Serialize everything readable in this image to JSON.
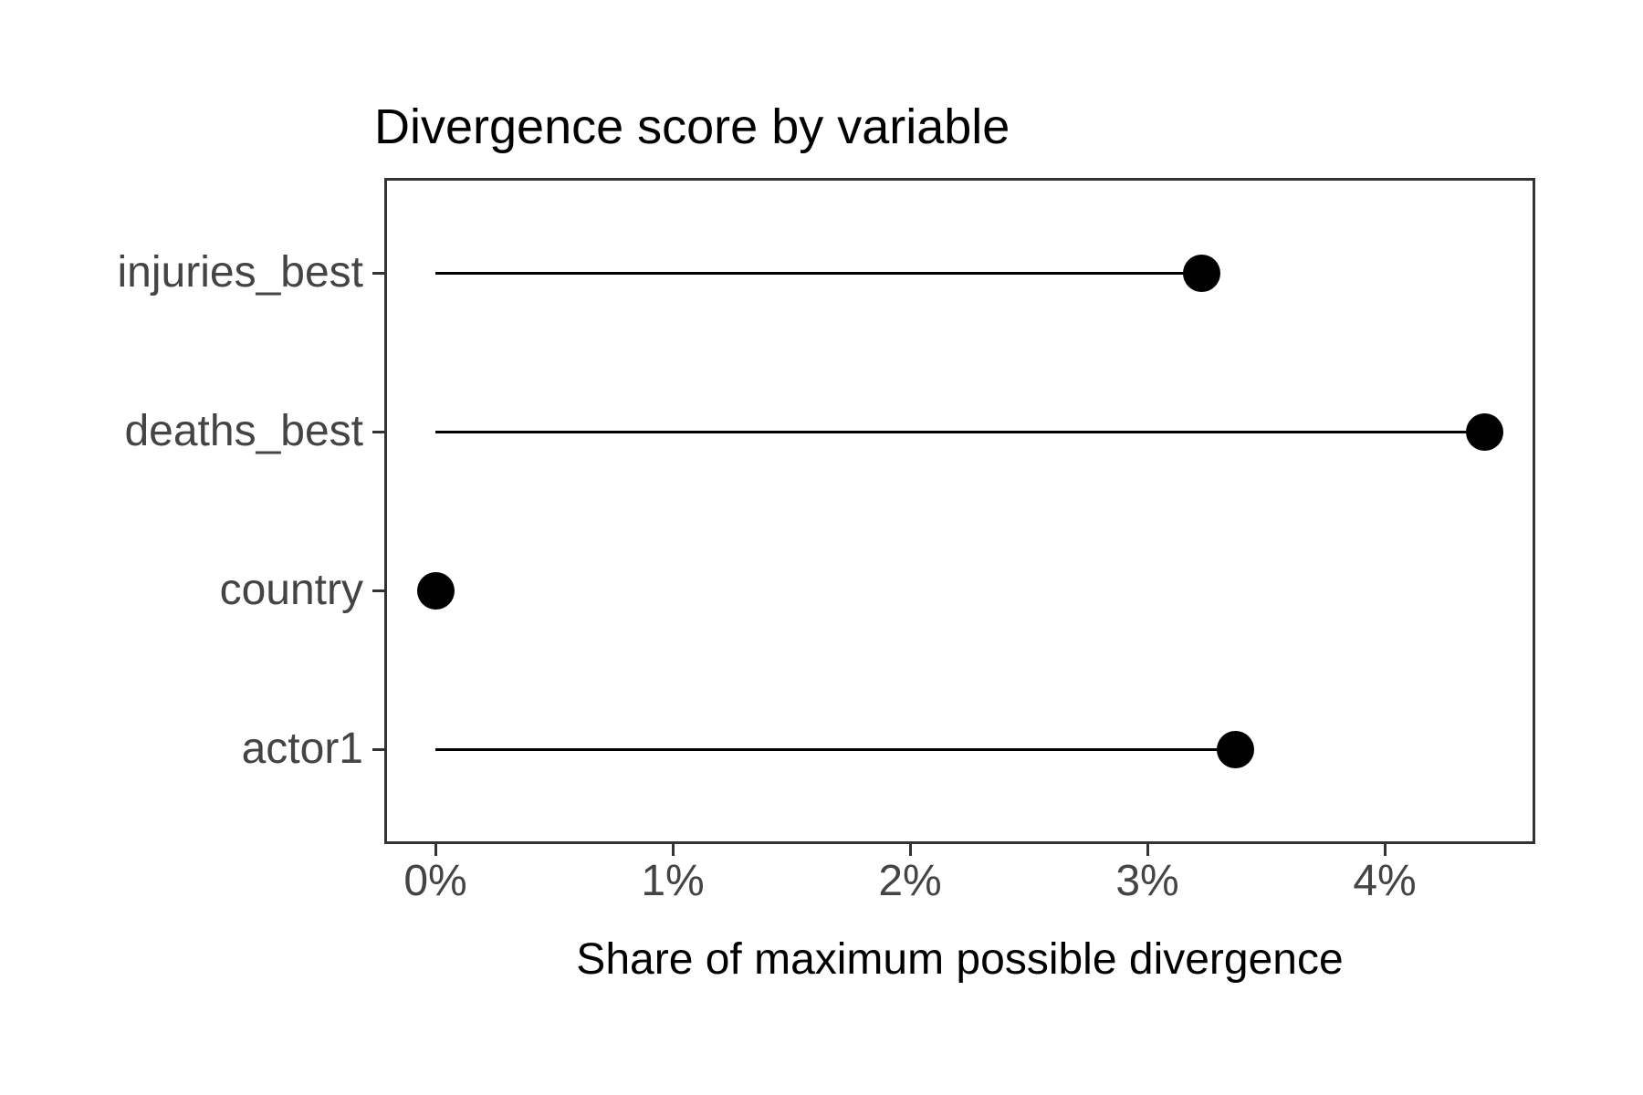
{
  "page": {
    "background_color": "#ffffff"
  },
  "chart_data": {
    "type": "bar",
    "variant": "horizontal-lollipop",
    "title": "Divergence score by variable",
    "xlabel": "Share of maximum possible divergence",
    "ylabel": "",
    "categories": [
      "injuries_best",
      "deaths_best",
      "country",
      "actor1"
    ],
    "values": [
      3.23,
      4.42,
      0.0,
      3.37
    ],
    "value_unit": "percent",
    "xlim": [
      -0.22,
      4.64
    ],
    "x_ticks": [
      "0%",
      "1%",
      "2%",
      "3%",
      "4%"
    ],
    "x_tick_values": [
      0,
      1,
      2,
      3,
      4
    ],
    "grid": false,
    "legend": false,
    "point_color": "#000000",
    "stem_color": "#000000",
    "axis_text_color": "#444444",
    "axis_title_color": "#000000",
    "title_color": "#000000",
    "panel_border_color": "#333333",
    "panel_background": "#ffffff"
  }
}
